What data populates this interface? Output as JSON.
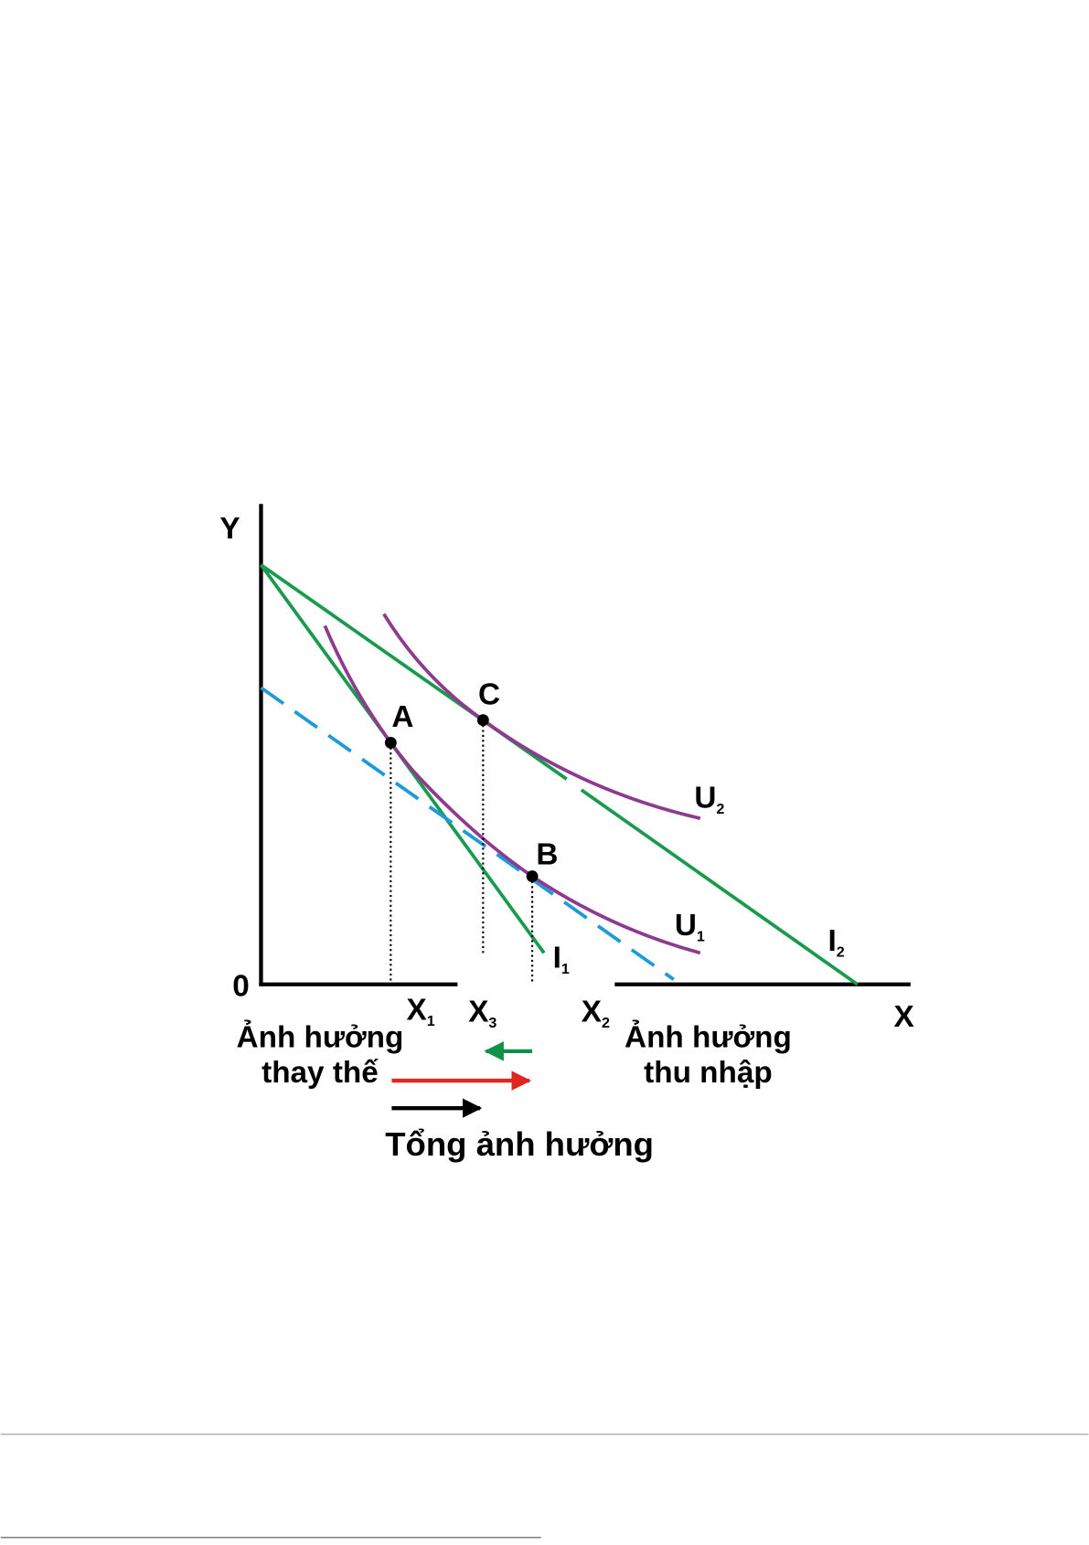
{
  "diagram": {
    "axes": {
      "y": "Y",
      "x": "X",
      "origin": "0"
    },
    "points": [
      "A",
      "B",
      "C"
    ],
    "x_labels": [
      {
        "main": "X",
        "sub": "1"
      },
      {
        "main": "X",
        "sub": "3"
      },
      {
        "main": "X",
        "sub": "2"
      }
    ],
    "curves": [
      {
        "main": "U",
        "sub": "2"
      },
      {
        "main": "U",
        "sub": "1"
      },
      {
        "main": "I",
        "sub": "1"
      },
      {
        "main": "I",
        "sub": "2"
      }
    ],
    "annotations": {
      "substitution": [
        "Ảnh hưởng",
        "thay thế"
      ],
      "income": [
        "Ảnh hưởng",
        "thu nhập"
      ],
      "total": "Tổng ảnh hưởng"
    }
  }
}
